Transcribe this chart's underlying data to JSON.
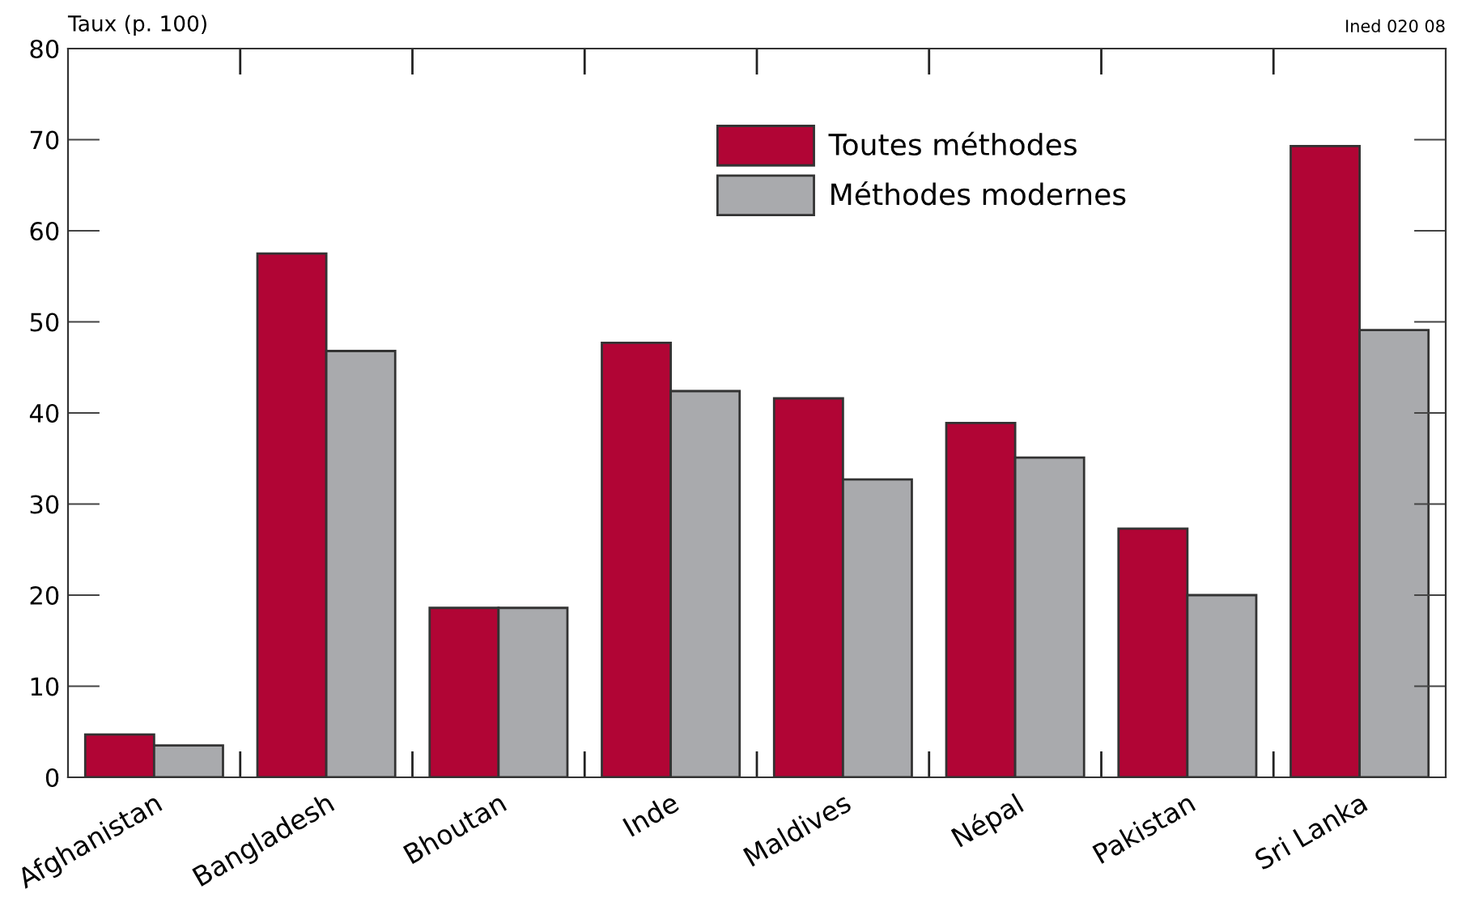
{
  "chart_data": {
    "type": "bar",
    "ylabel": "Taux (p. 100)",
    "annotations": [
      "Ined 020 08"
    ],
    "categories": [
      "Afghanistan",
      "Bangladesh",
      "Bhoutan",
      "Inde",
      "Maldives",
      "Népal",
      "Pakistan",
      "Sri Lanka"
    ],
    "series": [
      {
        "name": "Toutes méthodes",
        "color": "#b10535",
        "values": [
          4.7,
          57.5,
          18.6,
          47.7,
          41.6,
          38.9,
          27.3,
          69.3
        ]
      },
      {
        "name": "Méthodes modernes",
        "color": "#a9aaad",
        "values": [
          3.5,
          46.8,
          18.6,
          42.4,
          32.7,
          35.1,
          20.0,
          49.1
        ]
      }
    ],
    "ylim": [
      0,
      80
    ],
    "yticks": [
      0,
      10,
      20,
      30,
      40,
      50,
      60,
      70,
      80
    ],
    "grid": false,
    "legend": "top"
  }
}
